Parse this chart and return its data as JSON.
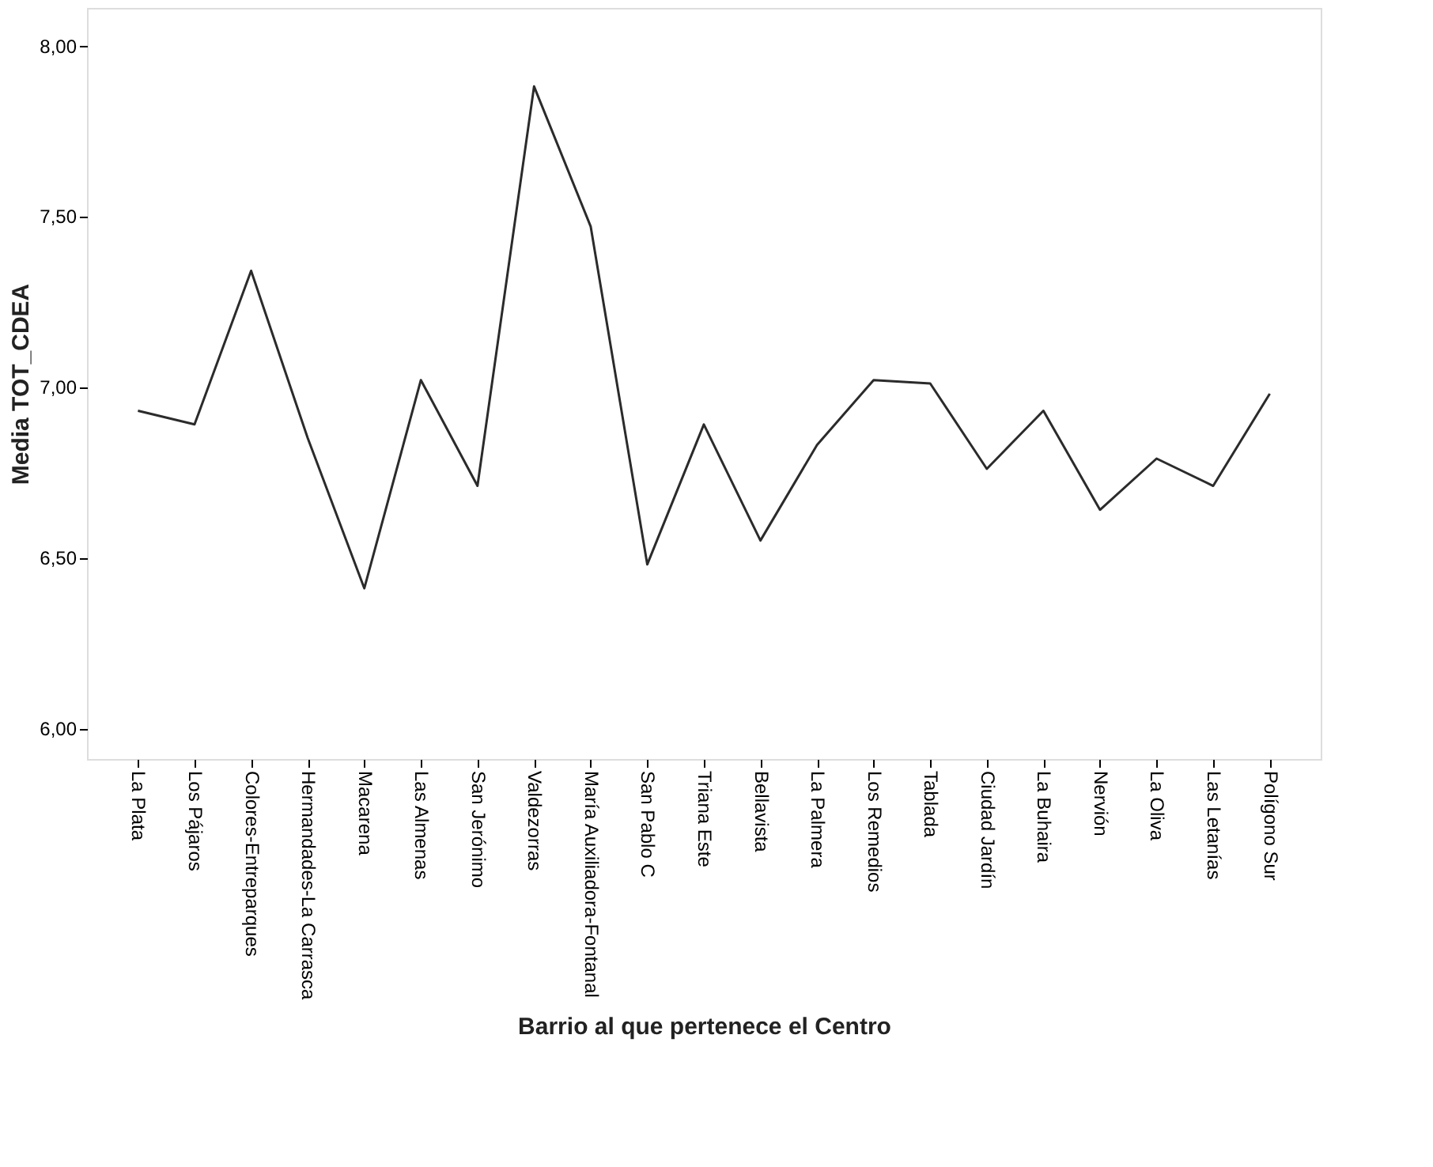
{
  "chart_data": {
    "type": "line",
    "xlabel": "Barrio al que pertenece el Centro",
    "ylabel": "Media TOT_CDEA",
    "categories": [
      "La Plata",
      "Los Pájaros",
      "Colores-Entreparques",
      "Hermandades-La Carrasca",
      "Macarena",
      "Las Almenas",
      "San Jerónimo",
      "Valdezorras",
      "María Auxiliadora-Fontanal",
      "San Pablo C",
      "Triana Este",
      "Bellavista",
      "La Palmera",
      "Los Remedios",
      "Tablada",
      "Ciudad Jardín",
      "La Buhaira",
      "Nervión",
      "La Oliva",
      "Las Letanías",
      "Polígono Sur"
    ],
    "series": [
      {
        "color": "#2b2b2b",
        "values": [
          6.93,
          6.89,
          7.34,
          6.85,
          6.41,
          7.02,
          6.71,
          7.88,
          7.47,
          6.48,
          6.89,
          6.55,
          6.83,
          7.02,
          7.01,
          6.76,
          6.93,
          6.64,
          6.79,
          6.71,
          6.98
        ]
      }
    ],
    "ylim": [
      5.91,
      8.11
    ],
    "yticks": [
      {
        "value": 6,
        "label": "6,00"
      },
      {
        "value": 6.5,
        "label": "6,50"
      },
      {
        "value": 7,
        "label": "7,00"
      },
      {
        "value": 7.5,
        "label": "7,50"
      },
      {
        "value": 8,
        "label": "8,00"
      }
    ],
    "grid": false,
    "legend": false,
    "marker": "none",
    "line_style": "solid"
  }
}
